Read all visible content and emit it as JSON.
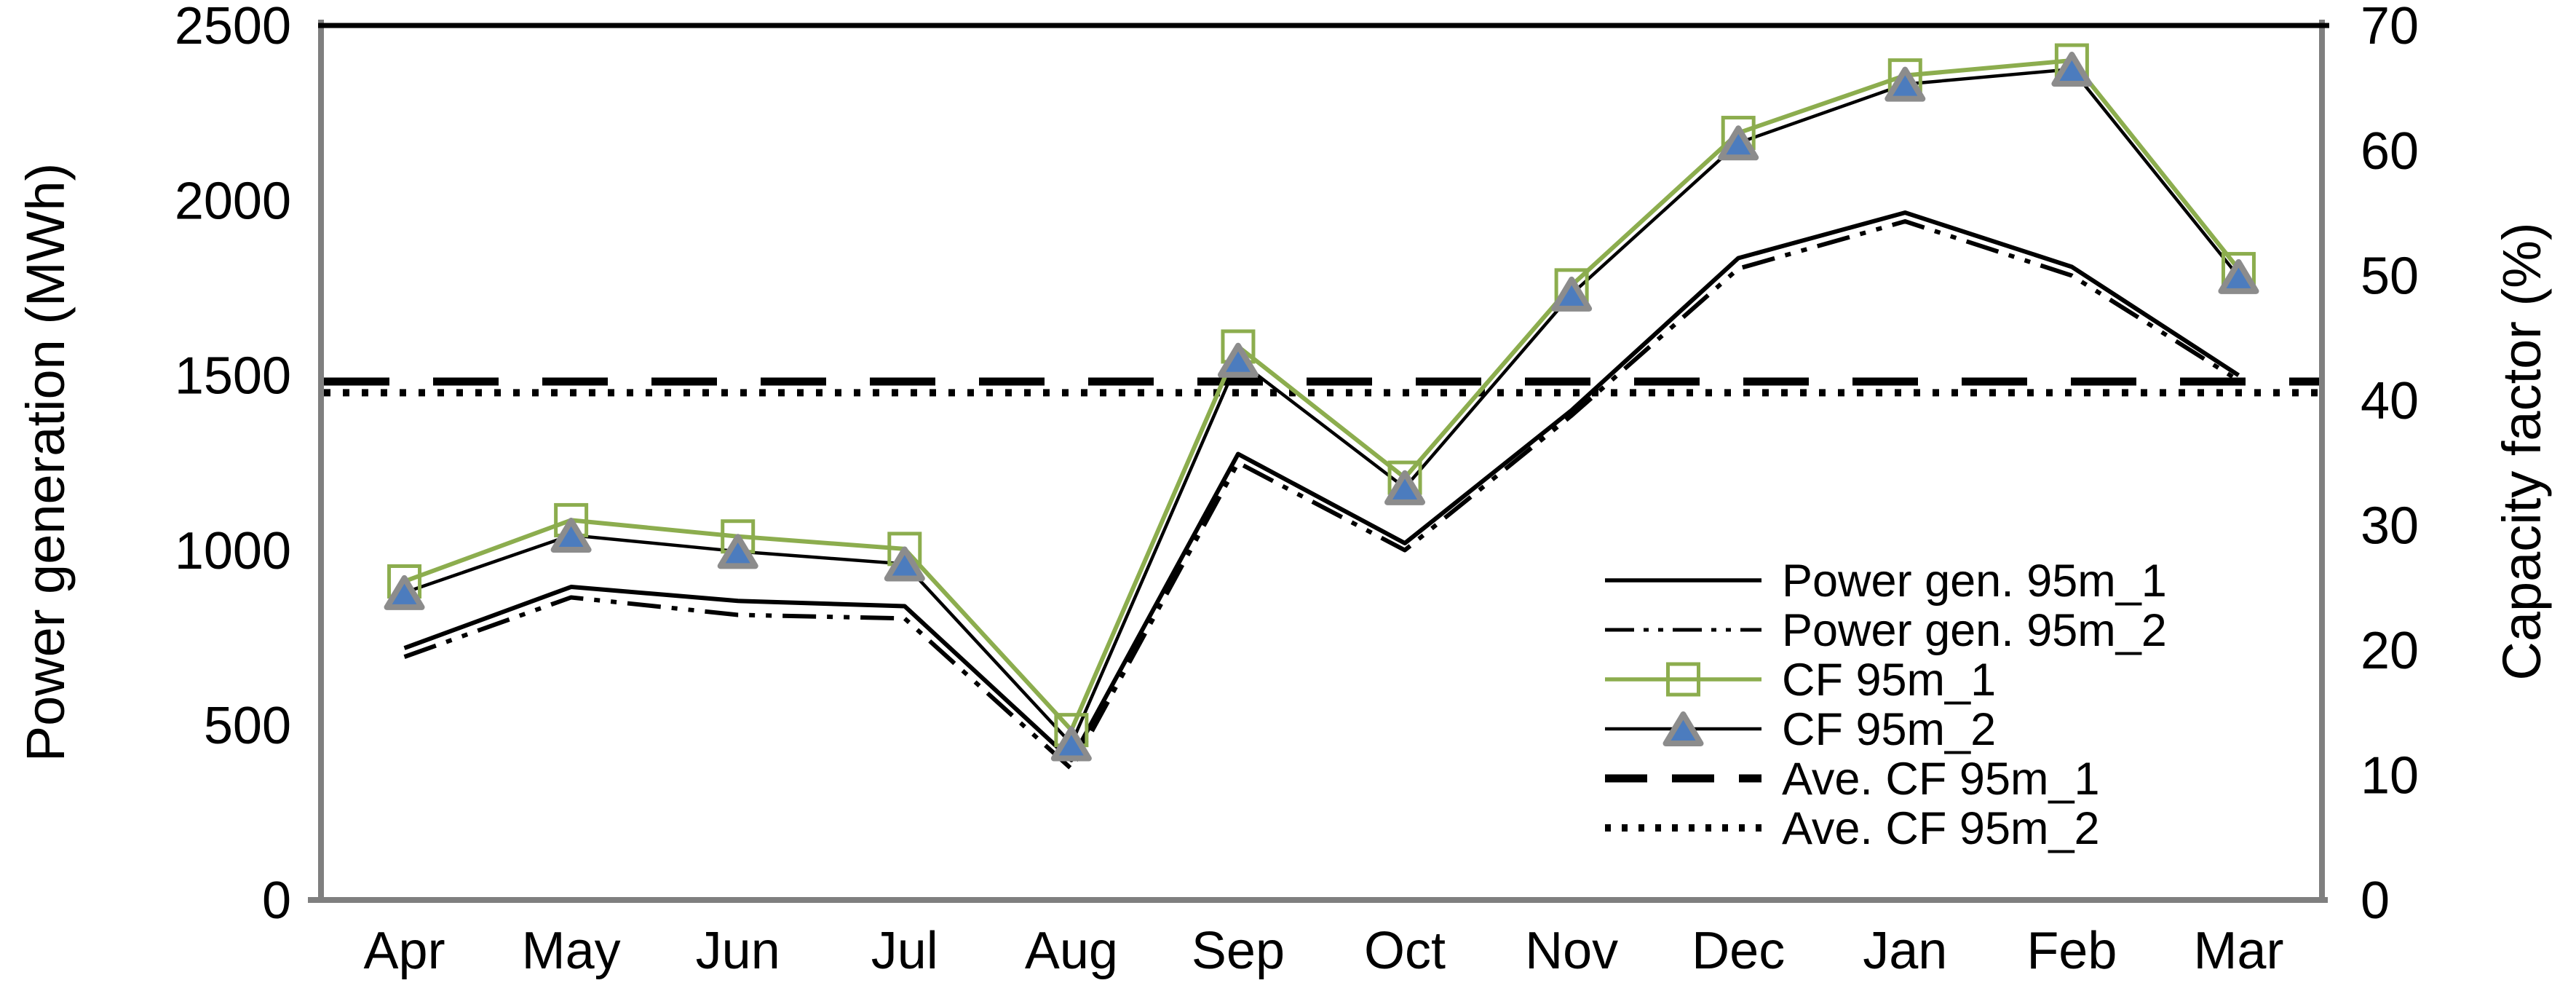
{
  "chart_data": {
    "type": "line",
    "title": "",
    "categories": [
      "Apr",
      "May",
      "Jun",
      "Jul",
      "Aug",
      "Sep",
      "Oct",
      "Nov",
      "Dec",
      "Jan",
      "Feb",
      "Mar"
    ],
    "left_axis": {
      "label": "Power generation (MWh)",
      "min": 0,
      "max": 2500,
      "ticks": [
        0,
        500,
        1000,
        1500,
        2000,
        2500
      ]
    },
    "right_axis": {
      "label": "Capacity factor (%)",
      "min": 0,
      "max": 70,
      "ticks": [
        0,
        10,
        20,
        30,
        40,
        50,
        60,
        70
      ]
    },
    "grid": false,
    "legend_position": "inside-right",
    "series": [
      {
        "name": "Power gen. 95m_1",
        "axis": "left",
        "line": "solid",
        "marker": "none",
        "color": "#000000",
        "values": [
          720,
          895,
          855,
          840,
          400,
          1275,
          1020,
          1400,
          1835,
          1965,
          1810,
          1500
        ]
      },
      {
        "name": "Power gen. 95m_2",
        "axis": "left",
        "line": "dash-dot-dot",
        "marker": "none",
        "color": "#000000",
        "values": [
          695,
          865,
          815,
          805,
          375,
          1250,
          1000,
          1385,
          1805,
          1940,
          1785,
          1485
        ]
      },
      {
        "name": "CF 95m_1",
        "axis": "right",
        "line": "solid",
        "marker": "open-square",
        "color": "#8CAD4E",
        "values": [
          25.5,
          30.4,
          29.1,
          28.1,
          13.6,
          44.3,
          33.8,
          49.2,
          61.4,
          66.0,
          67.2,
          50.5
        ]
      },
      {
        "name": "CF 95m_2",
        "axis": "right",
        "line": "solid",
        "marker": "triangle",
        "color": "#000000",
        "values": [
          24.6,
          29.2,
          27.9,
          26.9,
          12.5,
          43.2,
          33.0,
          48.5,
          60.6,
          65.3,
          66.5,
          49.9
        ]
      },
      {
        "name": "Ave. CF 95m_1",
        "axis": "right",
        "line": "bold-dash",
        "marker": "none",
        "color": "#000000",
        "constant": 41.5
      },
      {
        "name": "Ave. CF 95m_2",
        "axis": "right",
        "line": "bold-dot",
        "marker": "none",
        "color": "#000000",
        "constant": 40.6
      }
    ]
  },
  "legend": {
    "items": [
      "Power gen. 95m_1",
      "Power gen. 95m_2",
      "CF 95m_1",
      "CF 95m_2",
      "Ave. CF 95m_1",
      "Ave. CF 95m_2"
    ]
  },
  "colors": {
    "series_green": "#8CAD4E",
    "triangle_fill": "#4C7CBE",
    "triangle_border": "#8C8C8C",
    "axis_gray": "#7F7F7F",
    "line_black": "#000000",
    "background": "#ffffff"
  }
}
